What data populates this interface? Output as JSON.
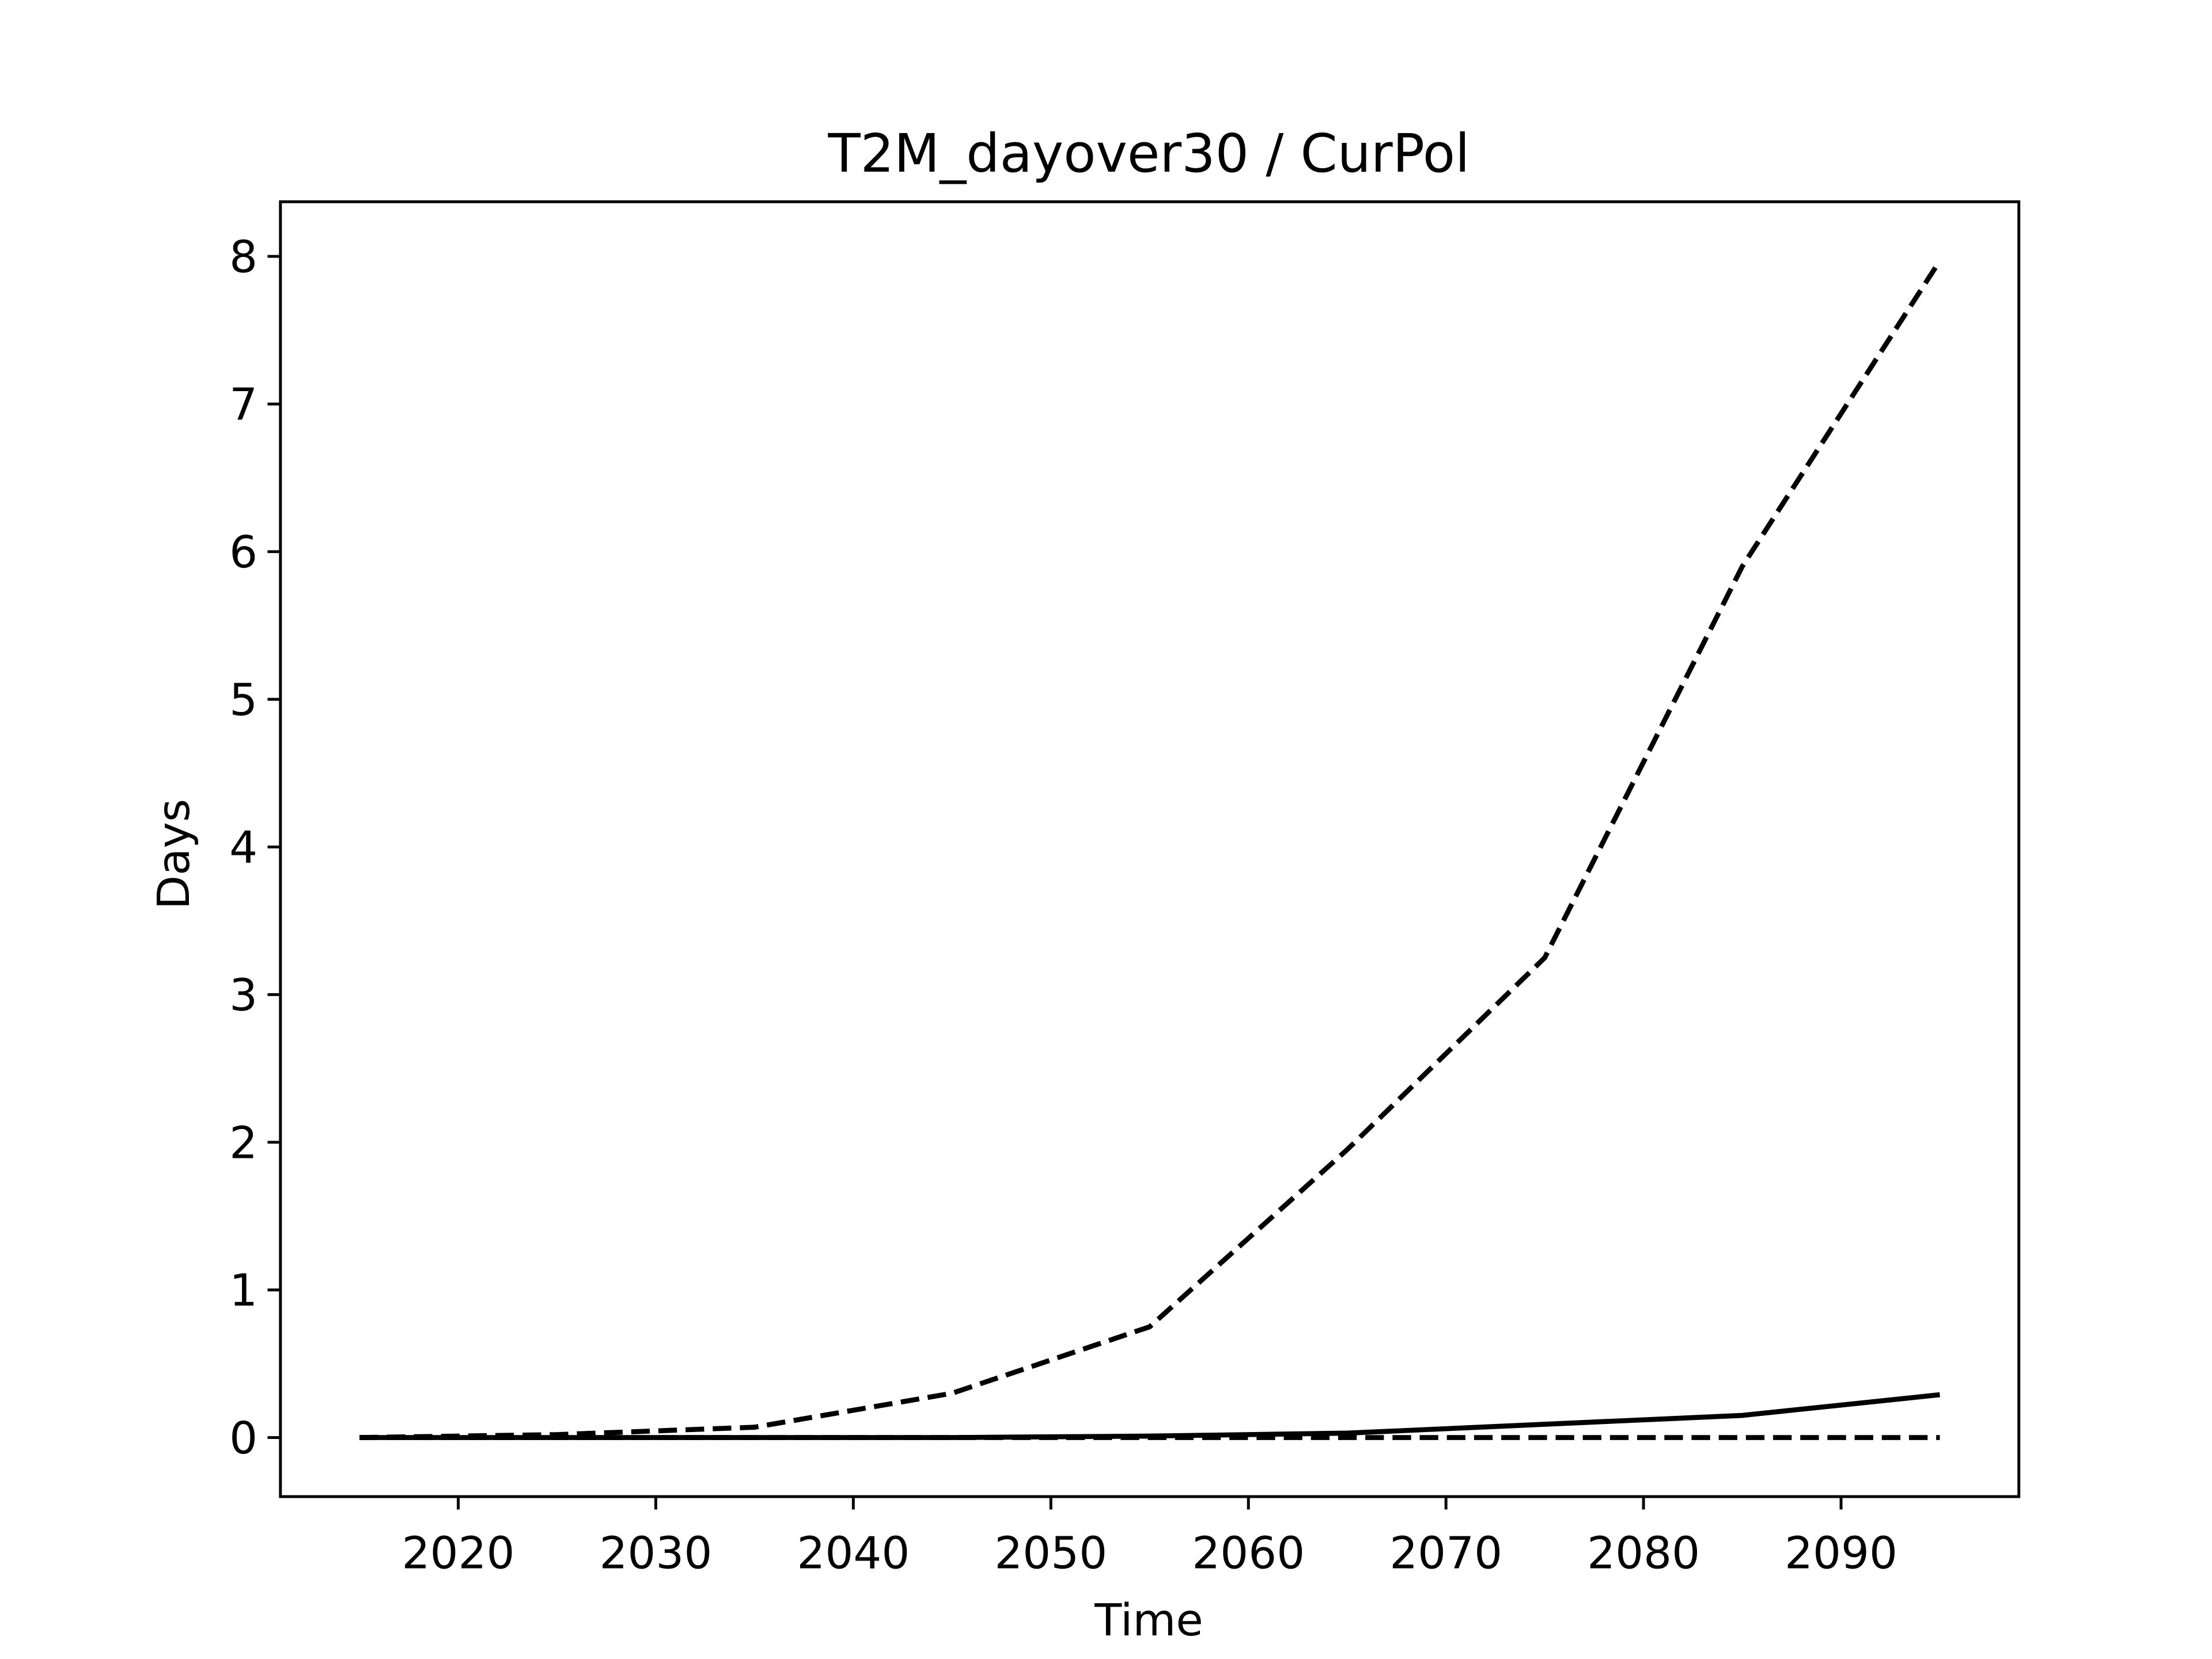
{
  "chart_data": {
    "type": "line",
    "title": "T2M_dayover30 / CurPol",
    "x_label": "Time",
    "y_label": "Days",
    "x": [
      2015,
      2025,
      2035,
      2045,
      2055,
      2065,
      2075,
      2085,
      2095
    ],
    "series": [
      {
        "color": "#000000",
        "style": "dashed",
        "values": [
          0,
          0.02,
          0.07,
          0.3,
          0.75,
          1.95,
          3.25,
          5.9,
          7.97
        ]
      },
      {
        "color": "#000000",
        "style": "solid",
        "values": [
          0,
          0,
          0,
          0,
          0.01,
          0.03,
          0.09,
          0.15,
          0.29
        ]
      },
      {
        "color": "#000000",
        "style": "dashed",
        "values": [
          0,
          0,
          0,
          0,
          0,
          0,
          0,
          0,
          0
        ]
      }
    ],
    "xlim": [
      2011,
      2099
    ],
    "xticks": [
      2020,
      2030,
      2040,
      2050,
      2060,
      2070,
      2080,
      2090
    ],
    "ylim": [
      -0.4,
      8.37
    ],
    "yticks": [
      0,
      1,
      2,
      3,
      4,
      5,
      6,
      7,
      8
    ],
    "grid": false
  }
}
